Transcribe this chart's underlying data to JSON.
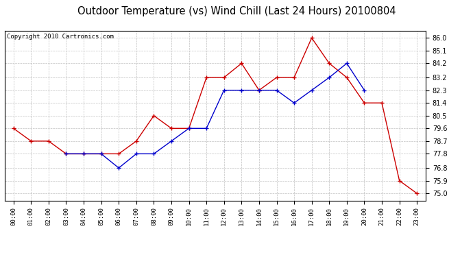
{
  "title": "Outdoor Temperature (vs) Wind Chill (Last 24 Hours) 20100804",
  "copyright": "Copyright 2010 Cartronics.com",
  "x_labels": [
    "00:00",
    "01:00",
    "02:00",
    "03:00",
    "04:00",
    "05:00",
    "06:00",
    "07:00",
    "08:00",
    "09:00",
    "10:00",
    "11:00",
    "12:00",
    "13:00",
    "14:00",
    "15:00",
    "16:00",
    "17:00",
    "18:00",
    "19:00",
    "20:00",
    "21:00",
    "22:00",
    "23:00"
  ],
  "temp_red": [
    79.6,
    78.7,
    78.7,
    77.8,
    77.8,
    77.8,
    77.8,
    78.7,
    80.5,
    79.6,
    79.6,
    83.2,
    83.2,
    84.2,
    82.3,
    83.2,
    83.2,
    86.0,
    84.2,
    83.2,
    81.4,
    81.4,
    75.9,
    75.0
  ],
  "wind_blue": [
    null,
    null,
    null,
    77.8,
    77.8,
    77.8,
    76.8,
    77.8,
    77.8,
    78.7,
    79.6,
    79.6,
    82.3,
    82.3,
    82.3,
    82.3,
    81.4,
    82.3,
    83.2,
    84.2,
    82.3,
    null,
    null,
    null
  ],
  "ylim": [
    74.5,
    86.5
  ],
  "yticks": [
    75.0,
    75.9,
    76.8,
    77.8,
    78.7,
    79.6,
    80.5,
    81.4,
    82.3,
    83.2,
    84.2,
    85.1,
    86.0
  ],
  "red_color": "#cc0000",
  "blue_color": "#0000cc",
  "grid_color": "#c0c0c0",
  "bg_color": "#ffffff",
  "title_fontsize": 10.5,
  "copyright_fontsize": 6.5
}
